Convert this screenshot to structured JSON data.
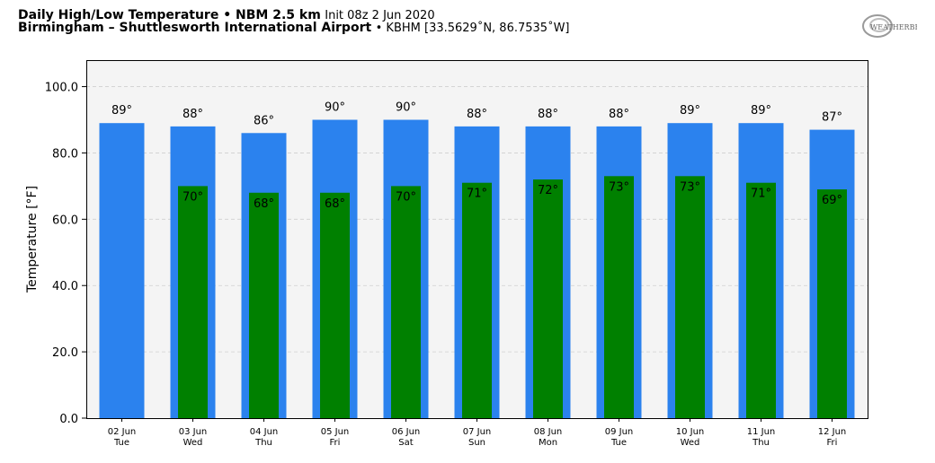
{
  "header": {
    "line1_bold": "Daily High/Low Temperature • NBM 2.5 km",
    "line1_init": "Init 08z 2 Jun 2020",
    "line2_bold": "Birmingham – Shuttlesworth International Airport",
    "line2_rest": "• KBHM [33.5629˚N, 86.7535˚W]"
  },
  "logo": {
    "text": "WEATHERBELL",
    "icon": "weatherbell-logo"
  },
  "colors": {
    "high": "#2b82ee",
    "low": "#008000",
    "plot_bg": "#f4f4f4",
    "grid": "#cfcfcf"
  },
  "chart_data": {
    "type": "bar",
    "ylabel": "Temperature [°F]",
    "ylim": [
      0,
      108
    ],
    "yticks": [
      "0.0",
      "20.0",
      "40.0",
      "60.0",
      "80.0",
      "100.0"
    ],
    "grid": true,
    "categories": [
      [
        "02 Jun",
        "Tue"
      ],
      [
        "03 Jun",
        "Wed"
      ],
      [
        "04 Jun",
        "Thu"
      ],
      [
        "05 Jun",
        "Fri"
      ],
      [
        "06 Jun",
        "Sat"
      ],
      [
        "07 Jun",
        "Sun"
      ],
      [
        "08 Jun",
        "Mon"
      ],
      [
        "09 Jun",
        "Tue"
      ],
      [
        "10 Jun",
        "Wed"
      ],
      [
        "11 Jun",
        "Thu"
      ],
      [
        "12 Jun",
        "Fri"
      ]
    ],
    "series": [
      {
        "key": "high",
        "values": [
          89,
          88,
          86,
          90,
          90,
          88,
          88,
          88,
          89,
          89,
          87
        ],
        "labels": [
          "89°",
          "88°",
          "86°",
          "90°",
          "90°",
          "88°",
          "88°",
          "88°",
          "89°",
          "89°",
          "87°"
        ]
      },
      {
        "key": "low",
        "values": [
          null,
          70,
          68,
          68,
          70,
          71,
          72,
          73,
          73,
          71,
          69
        ],
        "labels": [
          "",
          "70°",
          "68°",
          "68°",
          "70°",
          "71°",
          "72°",
          "73°",
          "73°",
          "71°",
          "69°"
        ]
      }
    ]
  }
}
